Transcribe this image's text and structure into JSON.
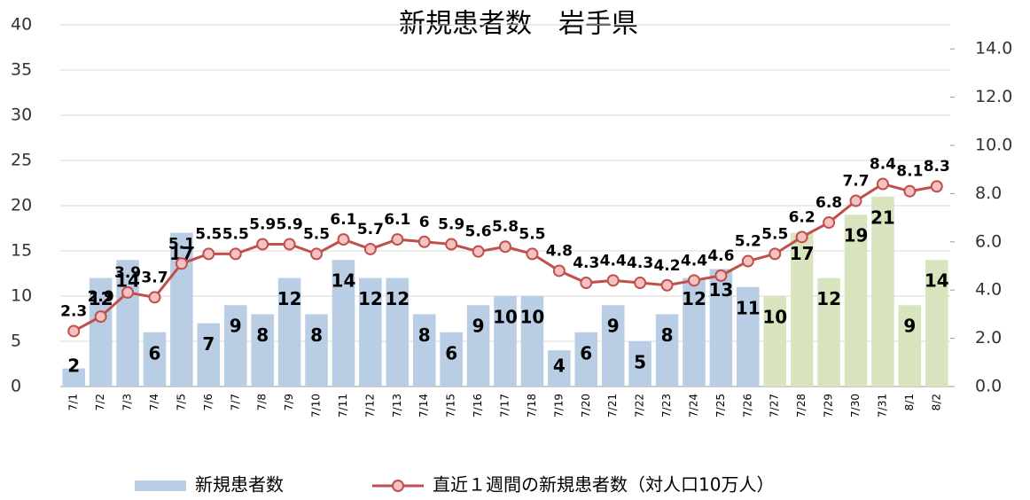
{
  "chart_data": {
    "type": "bar_line",
    "title": "新規患者数　岩手県",
    "categories": [
      "7/1",
      "7/2",
      "7/3",
      "7/4",
      "7/5",
      "7/6",
      "7/7",
      "7/8",
      "7/9",
      "7/10",
      "7/11",
      "7/12",
      "7/13",
      "7/14",
      "7/15",
      "7/16",
      "7/17",
      "7/18",
      "7/19",
      "7/20",
      "7/21",
      "7/22",
      "7/23",
      "7/24",
      "7/25",
      "7/26",
      "7/27",
      "7/28",
      "7/29",
      "7/30",
      "7/31",
      "8/1",
      "8/2"
    ],
    "series": [
      {
        "name": "新規患者数",
        "type": "bar",
        "color": "#b9cde5",
        "colors": [
          "#b9cde5",
          "#b9cde5",
          "#b9cde5",
          "#b9cde5",
          "#b9cde5",
          "#b9cde5",
          "#b9cde5",
          "#b9cde5",
          "#b9cde5",
          "#b9cde5",
          "#b9cde5",
          "#b9cde5",
          "#b9cde5",
          "#b9cde5",
          "#b9cde5",
          "#b9cde5",
          "#b9cde5",
          "#b9cde5",
          "#b9cde5",
          "#b9cde5",
          "#b9cde5",
          "#b9cde5",
          "#b9cde5",
          "#b9cde5",
          "#b9cde5",
          "#b9cde5",
          "#d7e4bd",
          "#d7e4bd",
          "#d7e4bd",
          "#d7e4bd",
          "#d7e4bd",
          "#d7e4bd",
          "#d7e4bd"
        ],
        "values": [
          2,
          12,
          14,
          6,
          17,
          7,
          9,
          8,
          12,
          8,
          14,
          12,
          12,
          8,
          6,
          9,
          10,
          10,
          4,
          6,
          9,
          5,
          8,
          12,
          13,
          11,
          10,
          17,
          12,
          19,
          21,
          9,
          14
        ]
      },
      {
        "name": "直近１週間の新規患者数（対人口10万人）",
        "type": "line",
        "axis": "y2",
        "color": "#c0504d",
        "values": [
          2.3,
          2.9,
          3.9,
          3.7,
          5.1,
          5.5,
          5.5,
          5.9,
          5.9,
          5.5,
          6.1,
          5.7,
          6.1,
          6.0,
          5.9,
          5.6,
          5.8,
          5.5,
          4.8,
          4.3,
          4.4,
          4.3,
          4.2,
          4.4,
          4.6,
          5.2,
          5.5,
          6.2,
          6.8,
          7.7,
          8.4,
          8.1,
          8.3
        ]
      }
    ],
    "ylim": [
      0,
      40
    ],
    "yticks": [
      0,
      5,
      10,
      15,
      20,
      25,
      30,
      35,
      40
    ],
    "y2lim": [
      0,
      15
    ],
    "y2ticks": [
      {
        "value": 0,
        "label": "0.0"
      },
      {
        "value": 2,
        "label": "2.0"
      },
      {
        "value": 4,
        "label": "4.0"
      },
      {
        "value": 6,
        "label": "6.0"
      },
      {
        "value": 8,
        "label": "8.0"
      },
      {
        "value": 10,
        "label": "10.0"
      },
      {
        "value": 12,
        "label": "12.0"
      },
      {
        "value": 14,
        "label": "14.0"
      }
    ],
    "grid": true
  }
}
